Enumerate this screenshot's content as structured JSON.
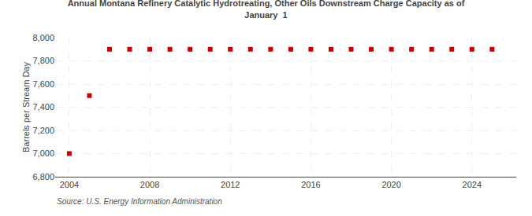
{
  "chart_data": {
    "type": "scatter",
    "title": "Annual Montana Refinery Catalytic Hydrotreating, Other Oils Downstream Charge Capacity as of\nJanuary  1",
    "ylabel": "Barrels per Stream Day",
    "source": "Source: U.S. Energy Information Administration",
    "x": [
      2004,
      2005,
      2006,
      2007,
      2008,
      2009,
      2010,
      2011,
      2012,
      2013,
      2014,
      2015,
      2016,
      2017,
      2018,
      2019,
      2020,
      2021,
      2022,
      2023,
      2024,
      2025
    ],
    "values": [
      7000,
      7500,
      7900,
      7900,
      7900,
      7900,
      7900,
      7900,
      7900,
      7900,
      7900,
      7900,
      7900,
      7900,
      7900,
      7900,
      7900,
      7900,
      7900,
      7900,
      7900,
      7900
    ],
    "color": "#cc0000",
    "marker": "square",
    "xlim": [
      2003.3,
      2026.2
    ],
    "xticks": [
      2004,
      2008,
      2012,
      2016,
      2020,
      2024
    ],
    "ylim": [
      6800,
      8000
    ],
    "yticks": [
      {
        "value": 6800,
        "label": "6,800"
      },
      {
        "value": 7000,
        "label": "7,000"
      },
      {
        "value": 7200,
        "label": "7,200"
      },
      {
        "value": 7400,
        "label": "7,400"
      },
      {
        "value": 7600,
        "label": "7,600"
      },
      {
        "value": 7800,
        "label": "7,800"
      },
      {
        "value": 8000,
        "label": "8,000"
      }
    ],
    "grid": true
  }
}
